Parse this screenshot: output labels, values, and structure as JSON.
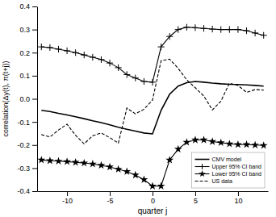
{
  "chart_data": {
    "type": "line",
    "title": "",
    "xlabel": "quarter j",
    "ylabel": "correlation(Δy(t), π(t+j))",
    "x": [
      -13,
      -12,
      -11,
      -10,
      -9,
      -8,
      -7,
      -6,
      -5,
      -4,
      -3,
      -2,
      -1,
      0,
      1,
      2,
      3,
      4,
      5,
      6,
      7,
      8,
      9,
      10,
      11,
      12,
      13
    ],
    "xlim": [
      -13.5,
      13.5
    ],
    "ylim": [
      -0.4,
      0.4
    ],
    "xticks": [
      -10,
      -5,
      0,
      5,
      10
    ],
    "yticks": [
      -0.4,
      -0.3,
      -0.2,
      -0.1,
      {
        "value": 0.0,
        "label": "0.0"
      },
      0.1,
      0.2,
      0.3,
      0.4
    ],
    "grid": false,
    "legend": "lower right",
    "series": [
      {
        "name": "CMV model",
        "color": "black",
        "line_style": "solid",
        "values": [
          -0.05,
          -0.055,
          -0.063,
          -0.07,
          -0.078,
          -0.086,
          -0.095,
          -0.103,
          -0.113,
          -0.123,
          -0.132,
          -0.14,
          -0.148,
          -0.152,
          -0.05,
          0.02,
          0.055,
          0.07,
          0.075,
          0.072,
          0.068,
          0.065,
          0.063,
          0.062,
          0.06,
          0.058,
          0.055
        ]
      },
      {
        "name": "Upper 95% CI band",
        "color": "black",
        "line_style": "solid",
        "marker": "plus",
        "values": [
          0.225,
          0.222,
          0.215,
          0.208,
          0.2,
          0.19,
          0.18,
          0.17,
          0.155,
          0.135,
          0.105,
          0.09,
          0.075,
          0.072,
          0.225,
          0.27,
          0.3,
          0.31,
          0.308,
          0.305,
          0.302,
          0.3,
          0.3,
          0.3,
          0.295,
          0.285,
          0.275
        ]
      },
      {
        "name": "Lower 95% CI band",
        "color": "black",
        "line_style": "solid",
        "marker": "star",
        "values": [
          -0.265,
          -0.268,
          -0.27,
          -0.272,
          -0.275,
          -0.278,
          -0.282,
          -0.288,
          -0.295,
          -0.305,
          -0.315,
          -0.33,
          -0.35,
          -0.378,
          -0.378,
          -0.265,
          -0.218,
          -0.188,
          -0.178,
          -0.178,
          -0.185,
          -0.19,
          -0.195,
          -0.198,
          -0.198,
          -0.2,
          -0.202
        ]
      },
      {
        "name": "US data",
        "color": "black",
        "line_style": "dashed",
        "values": [
          -0.155,
          -0.165,
          -0.135,
          -0.11,
          -0.158,
          -0.195,
          -0.16,
          -0.148,
          -0.168,
          -0.192,
          -0.04,
          -0.065,
          -0.045,
          -0.005,
          0.165,
          0.172,
          0.132,
          0.082,
          0.048,
          0.012,
          -0.048,
          -0.01,
          0.068,
          0.058,
          0.028,
          0.04,
          0.038
        ]
      }
    ]
  }
}
